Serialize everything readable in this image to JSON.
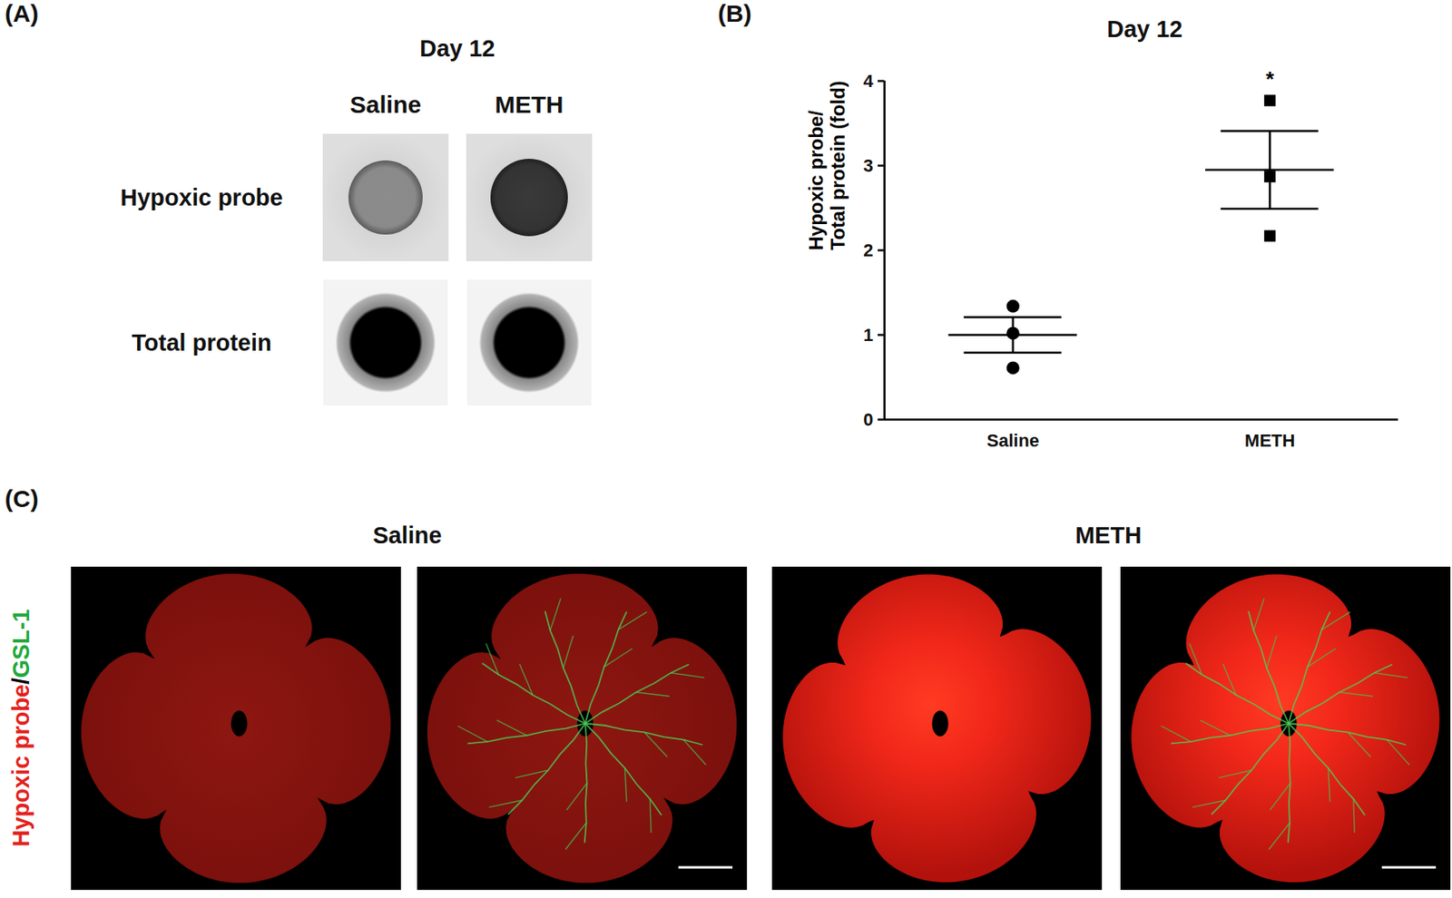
{
  "panel_a": {
    "label": "(A)",
    "title": "Day 12",
    "columns": [
      "Saline",
      "METH"
    ],
    "rows": [
      "Hypoxic probe",
      "Total protein"
    ]
  },
  "chart_data": {
    "type": "scatter",
    "panel_label": "(B)",
    "title": "Day 12",
    "ylabel": "Hypoxic probe/\nTotal protein (fold)",
    "categories": [
      "Saline",
      "METH"
    ],
    "values": [
      [
        1.34,
        1.02,
        0.61
      ],
      [
        3.77,
        2.87,
        2.17
      ]
    ],
    "mean": [
      1.0,
      2.95
    ],
    "sem": [
      0.21,
      0.46
    ],
    "marker": [
      "circle",
      "square"
    ],
    "color": "#000000",
    "annotations": [
      {
        "category": "METH",
        "text": "*"
      }
    ],
    "ylim": [
      0,
      4
    ],
    "yticks": [
      0,
      1,
      2,
      3,
      4
    ]
  },
  "panel_c": {
    "label": "(C)",
    "groups": [
      "Saline",
      "METH"
    ],
    "channel_label": [
      {
        "text": "Hypoxic probe",
        "color": "#e3211b"
      },
      {
        "text": "/",
        "color": "#000000"
      },
      {
        "text": "GSL-1",
        "color": "#22a83c"
      }
    ]
  }
}
